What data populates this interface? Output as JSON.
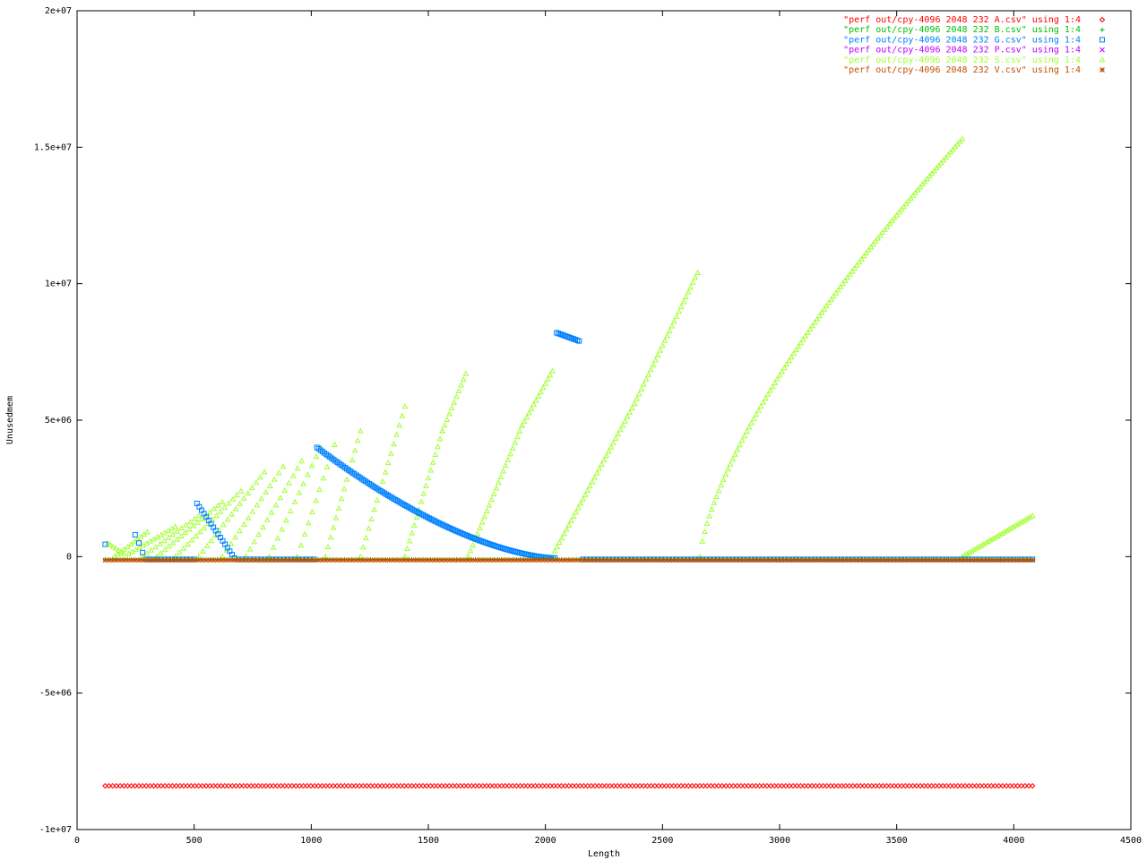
{
  "chart_data": {
    "type": "scatter",
    "title": "",
    "xlabel": "Length",
    "ylabel": "Unusedmem",
    "xlim": [
      0,
      4500
    ],
    "ylim": [
      -10000000,
      20000000
    ],
    "grid": false,
    "legend_position": "top-right",
    "x_ticks": [
      0,
      500,
      1000,
      1500,
      2000,
      2500,
      3000,
      3500,
      4000,
      4500
    ],
    "x_tick_labels": [
      "0",
      "500",
      "1000",
      "1500",
      "2000",
      "2500",
      "3000",
      "3500",
      "4000",
      "4500"
    ],
    "y_ticks": [
      -10000000,
      -5000000,
      0,
      5000000,
      10000000,
      15000000,
      20000000
    ],
    "y_tick_labels": [
      "-1e+07",
      "-5e+06",
      "0",
      "5e+06",
      "1e+07",
      "1.5e+07",
      "2e+07"
    ],
    "series": [
      {
        "name": "\"perf out/cpy-4096 2048 232 A.csv\" using 1:4",
        "color": "#ff0000",
        "marker": "diamond",
        "segments": [
          {
            "x_start": 120,
            "x_end": 4080,
            "x_step": 16,
            "y_start": -8400000,
            "y_end": -8400000
          }
        ]
      },
      {
        "name": "\"perf out/cpy-4096 2048 232 B.csv\" using 1:4",
        "color": "#00c000",
        "marker": "plus",
        "segments": [
          {
            "x_start": 120,
            "x_end": 4080,
            "x_step": 16,
            "y_start": -100000,
            "y_end": -100000
          }
        ]
      },
      {
        "name": "\"perf out/cpy-4096 2048 232 G.csv\" using 1:4",
        "color": "#0080ff",
        "marker": "square",
        "points": [
          [
            120,
            450000
          ],
          [
            248,
            800000
          ],
          [
            264,
            500000
          ],
          [
            280,
            150000
          ]
        ],
        "segments": [
          {
            "x_start": 296,
            "x_end": 500,
            "x_step": 16,
            "y_start": -100000,
            "y_end": -100000
          },
          {
            "x_start": 512,
            "x_end": 672,
            "x_step": 10,
            "y_start": 1950000,
            "y_end": -50000,
            "curve": 1.0
          },
          {
            "x_start": 688,
            "x_end": 1012,
            "x_step": 16,
            "y_start": -100000,
            "y_end": -100000
          },
          {
            "x_start": 1024,
            "x_end": 2040,
            "x_step": 8,
            "y_start": 4000000,
            "y_end": -50000,
            "curve": 1.6
          },
          {
            "x_start": 2048,
            "x_end": 2144,
            "x_step": 8,
            "y_start": 8200000,
            "y_end": 7900000
          },
          {
            "x_start": 2160,
            "x_end": 4080,
            "x_step": 16,
            "y_start": -100000,
            "y_end": -100000
          }
        ]
      },
      {
        "name": "\"perf out/cpy-4096 2048 232 P.csv\" using 1:4",
        "color": "#c000ff",
        "marker": "cross",
        "segments": []
      },
      {
        "name": "\"perf out/cpy-4096 2048 232 S.csv\" using 1:4",
        "color": "#a0ff30",
        "marker": "triangle",
        "segments": [
          {
            "x_start": 130,
            "x_end": 200,
            "x_step": 12,
            "y_start": 500000,
            "y_end": 100000
          },
          {
            "x_start": 160,
            "x_end": 300,
            "x_step": 14,
            "y_start": 0,
            "y_end": 900000
          },
          {
            "x_start": 220,
            "x_end": 420,
            "x_step": 16,
            "y_start": 100000,
            "y_end": 1100000
          },
          {
            "x_start": 280,
            "x_end": 520,
            "x_step": 18,
            "y_start": 0,
            "y_end": 1500000
          },
          {
            "x_start": 340,
            "x_end": 620,
            "x_step": 18,
            "y_start": 0,
            "y_end": 2000000
          },
          {
            "x_start": 420,
            "x_end": 700,
            "x_step": 18,
            "y_start": 0,
            "y_end": 2400000
          },
          {
            "x_start": 520,
            "x_end": 800,
            "x_step": 18,
            "y_start": 0,
            "y_end": 3100000
          },
          {
            "x_start": 620,
            "x_end": 880,
            "x_step": 18,
            "y_start": 0,
            "y_end": 3300000
          },
          {
            "x_start": 720,
            "x_end": 960,
            "x_step": 18,
            "y_start": 0,
            "y_end": 3500000
          },
          {
            "x_start": 820,
            "x_end": 1040,
            "x_step": 18,
            "y_start": 0,
            "y_end": 4000000
          },
          {
            "x_start": 940,
            "x_end": 1100,
            "x_step": 16,
            "y_start": 0,
            "y_end": 4100000
          },
          {
            "x_start": 1060,
            "x_end": 1210,
            "x_step": 12,
            "y_start": 0,
            "y_end": 4600000
          },
          {
            "x_start": 1210,
            "x_end": 1400,
            "x_step": 12,
            "y_start": 0,
            "y_end": 5500000
          },
          {
            "x_start": 1400,
            "x_end": 1560,
            "x_step": 10,
            "y_start": 0,
            "y_end": 4600000
          },
          {
            "x_start": 1560,
            "x_end": 1660,
            "x_step": 10,
            "y_start": 4600000,
            "y_end": 6700000
          },
          {
            "x_start": 1670,
            "x_end": 1900,
            "x_step": 10,
            "y_start": 0,
            "y_end": 4800000
          },
          {
            "x_start": 1900,
            "x_end": 2030,
            "x_step": 10,
            "y_start": 4800000,
            "y_end": 6800000
          },
          {
            "x_start": 2040,
            "x_end": 2380,
            "x_step": 10,
            "y_start": 200000,
            "y_end": 5600000
          },
          {
            "x_start": 2380,
            "x_end": 2650,
            "x_step": 10,
            "y_start": 5600000,
            "y_end": 10400000
          },
          {
            "x_start": 2660,
            "x_end": 3780,
            "x_step": 10,
            "y_start": 0,
            "y_end": 15300000,
            "curve": 0.7
          },
          {
            "x_start": 3780,
            "x_end": 4080,
            "x_step": 10,
            "y_start": 0,
            "y_end": 1500000
          }
        ]
      },
      {
        "name": "\"perf out/cpy-4096 2048 232 V.csv\" using 1:4",
        "color": "#c05000",
        "marker": "star",
        "segments": [
          {
            "x_start": 120,
            "x_end": 4080,
            "x_step": 16,
            "y_start": -130000,
            "y_end": -130000
          }
        ]
      }
    ]
  }
}
